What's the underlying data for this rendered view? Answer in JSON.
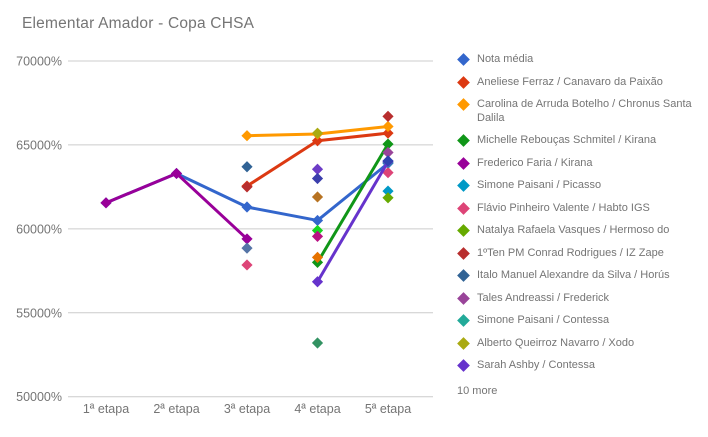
{
  "header": {
    "title": "Elementar Amador - Copa CHSA",
    "title_color": "#757575"
  },
  "axis": {
    "label_color": "#757575",
    "grid_color": "#cccccc"
  },
  "legend": {
    "more_label": "10 more"
  },
  "chart_data": {
    "type": "line",
    "title": "Elementar Amador - Copa CHSA",
    "xlabel": "",
    "ylabel": "",
    "categories": [
      "1ª etapa",
      "2ª etapa",
      "3ª etapa",
      "4ª etapa",
      "5ª etapa"
    ],
    "ylim": [
      50000,
      70000
    ],
    "yticks": [
      {
        "value": 70000,
        "label": "70000%"
      },
      {
        "value": 65000,
        "label": "65000%"
      },
      {
        "value": 60000,
        "label": "60000%"
      },
      {
        "value": 55000,
        "label": "55000%"
      },
      {
        "value": 50000,
        "label": "50000%"
      }
    ],
    "grid": true,
    "legend_position": "right",
    "marker": "diamond",
    "series": [
      {
        "name": "Nota média",
        "color": "#3366CC",
        "values": [
          61550,
          63300,
          61300,
          60500,
          63900
        ]
      },
      {
        "name": "Aneliese Ferraz / Canavaro da Paixão",
        "color": "#DC3912",
        "values": [
          null,
          null,
          62550,
          65250,
          65700
        ]
      },
      {
        "name": "Carolina de Arruda Botelho / Chronus Santa Dalila",
        "color": "#FF9900",
        "values": [
          null,
          null,
          65550,
          65650,
          66100
        ]
      },
      {
        "name": "Michelle Rebouças Schmitel / Kirana",
        "color": "#109618",
        "values": [
          null,
          null,
          null,
          58000,
          65050
        ]
      },
      {
        "name": "Frederico Faria / Kirana",
        "color": "#990099",
        "values": [
          61550,
          63300,
          59400,
          null,
          null
        ]
      },
      {
        "name": "Simone Paisani / Picasso",
        "color": "#0099C6",
        "values": [
          null,
          null,
          null,
          null,
          62250
        ]
      },
      {
        "name": "Flávio Pinheiro Valente / Habto IGS",
        "color": "#DD4477",
        "values": [
          null,
          null,
          57850,
          null,
          63350
        ]
      },
      {
        "name": "Natalya Rafaela Vasques / Hermoso do",
        "color": "#66AA00",
        "values": [
          null,
          null,
          null,
          null,
          61850
        ]
      },
      {
        "name": "1ºTen PM Conrad Rodrigues / IZ Zape",
        "color": "#B82E2E",
        "values": [
          null,
          null,
          62500,
          null,
          66700
        ]
      },
      {
        "name": "Italo Manuel Alexandre da Silva / Horús",
        "color": "#316395",
        "values": [
          null,
          null,
          63700,
          null,
          null
        ]
      },
      {
        "name": "Tales Andreassi / Frederick",
        "color": "#994499",
        "values": [
          null,
          null,
          null,
          null,
          64550
        ]
      },
      {
        "name": "Simone Paisani / Contessa",
        "color": "#22AA99",
        "values": [
          null,
          null,
          null,
          null,
          63950
        ]
      },
      {
        "name": "Alberto Queirroz Navarro / Xodo",
        "color": "#AAAA11",
        "values": [
          null,
          null,
          null,
          65700,
          null
        ]
      },
      {
        "name": "Sarah Ashby / Contessa",
        "color": "#6633CC",
        "values": [
          null,
          null,
          null,
          56850,
          64000
        ]
      },
      {
        "name": "",
        "color": "#E67300",
        "values": [
          null,
          null,
          null,
          58300,
          null
        ]
      },
      {
        "name": "",
        "color": "#5574A6",
        "values": [
          null,
          null,
          58850,
          null,
          null
        ]
      },
      {
        "name": "",
        "color": "#B77322",
        "values": [
          null,
          null,
          null,
          61900,
          null
        ]
      },
      {
        "name": "",
        "color": "#16D620",
        "values": [
          null,
          null,
          null,
          59900,
          null
        ]
      },
      {
        "name": "",
        "color": "#B91383",
        "values": [
          null,
          null,
          null,
          59550,
          null
        ]
      },
      {
        "name": "",
        "color": "#329262",
        "values": [
          null,
          null,
          null,
          53200,
          null
        ]
      },
      {
        "name": "",
        "color": "#6D3CC7",
        "values": [
          null,
          null,
          null,
          63550,
          null
        ]
      },
      {
        "name": "",
        "color": "#3B3EAC",
        "values": [
          null,
          null,
          null,
          63000,
          null
        ]
      },
      {
        "name": "",
        "color": "#2F43B0",
        "values": [
          null,
          null,
          null,
          null,
          64050
        ]
      }
    ]
  }
}
